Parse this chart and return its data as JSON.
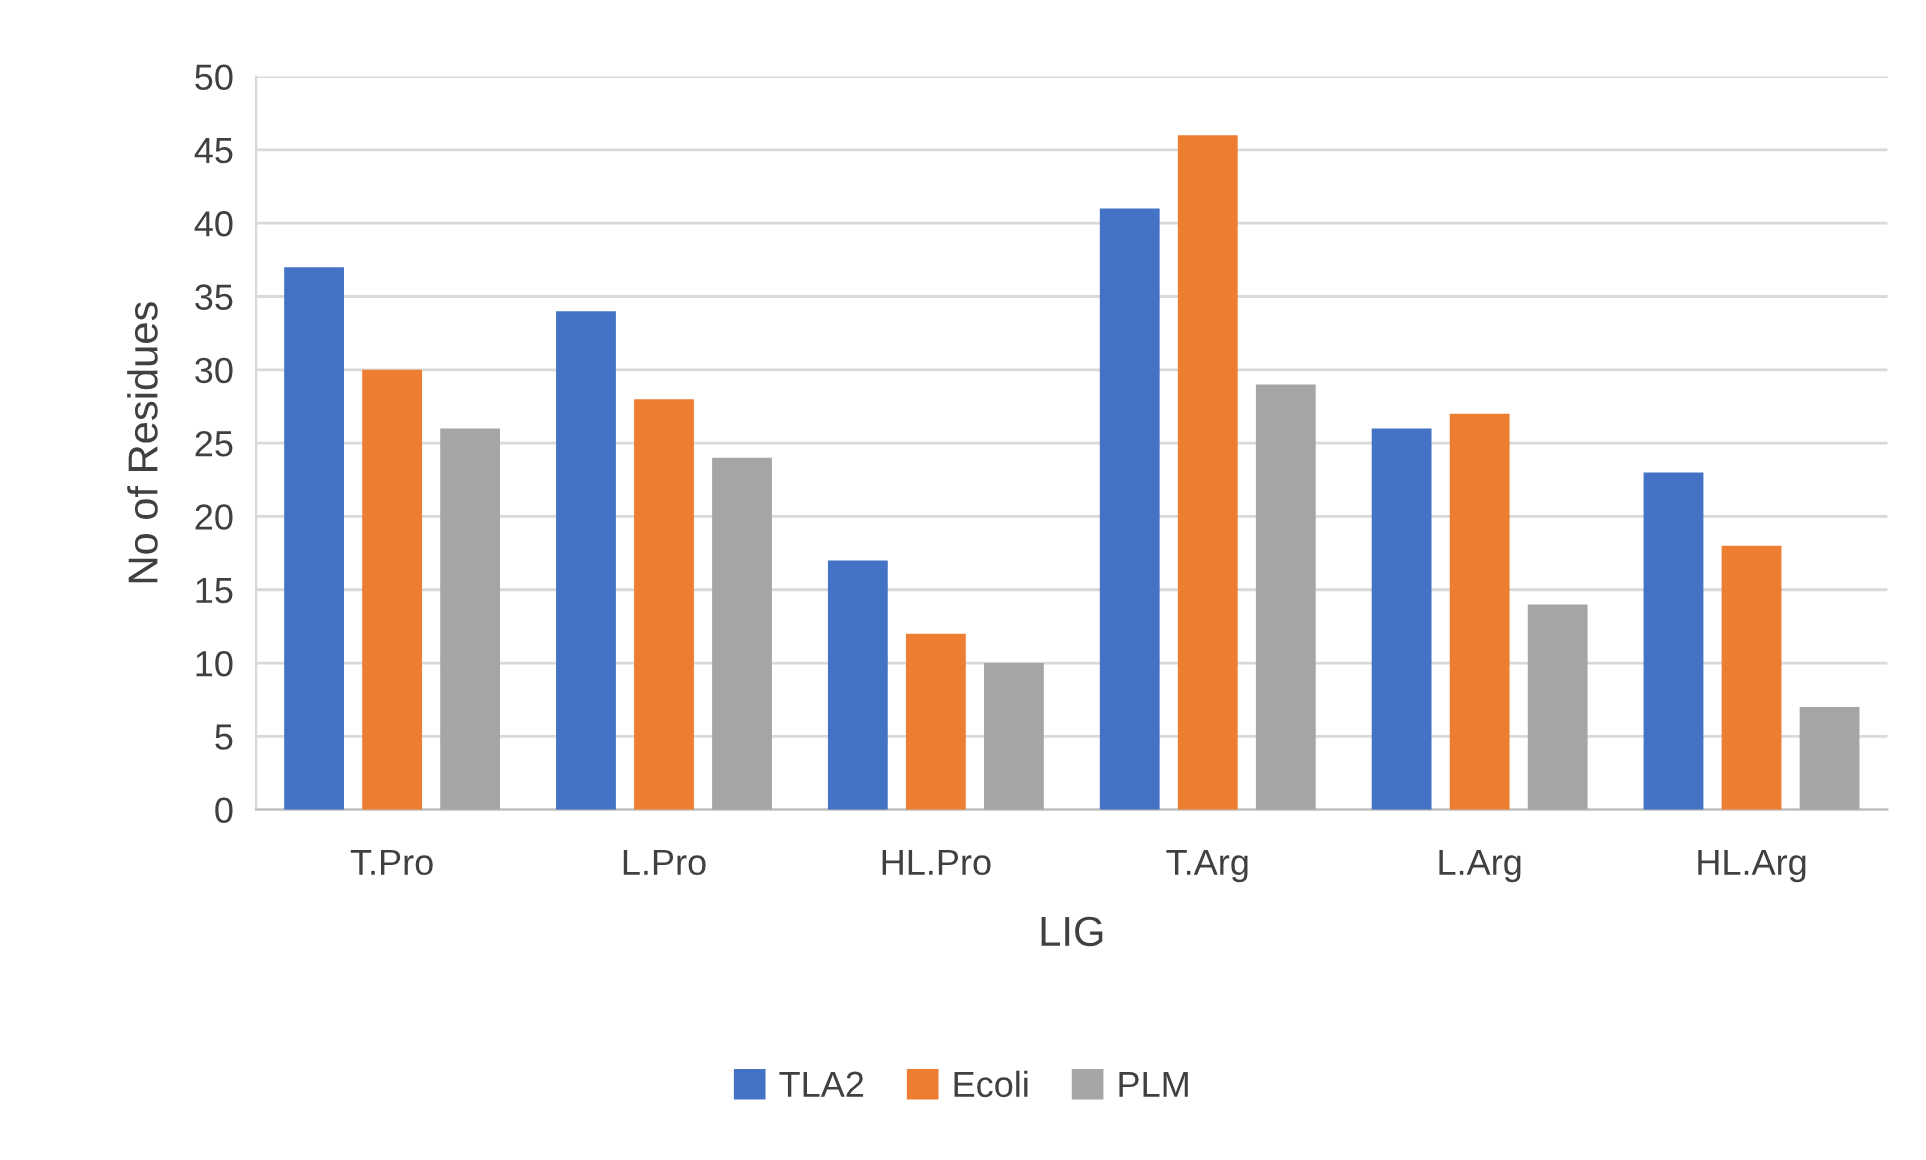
{
  "chart_data": {
    "type": "bar",
    "xlabel": "LIG",
    "ylabel": "No of Residues",
    "categories": [
      "T.Pro",
      "L.Pro",
      "HL.Pro",
      "T.Arg",
      "L.Arg",
      "HL.Arg"
    ],
    "series": [
      {
        "name": "TLA2",
        "color": "#4472c4",
        "values": [
          37,
          34,
          17,
          41,
          26,
          23
        ]
      },
      {
        "name": "Ecoli",
        "color": "#ed7d31",
        "values": [
          30,
          28,
          12,
          46,
          27,
          18
        ]
      },
      {
        "name": "PLM",
        "color": "#a5a5a5",
        "values": [
          26,
          24,
          10,
          29,
          14,
          7
        ]
      }
    ],
    "ylim": [
      0,
      50
    ],
    "yticks": [
      0,
      5,
      10,
      15,
      20,
      25,
      30,
      35,
      40,
      45,
      50
    ],
    "grid": "y",
    "legend": "bottom"
  }
}
